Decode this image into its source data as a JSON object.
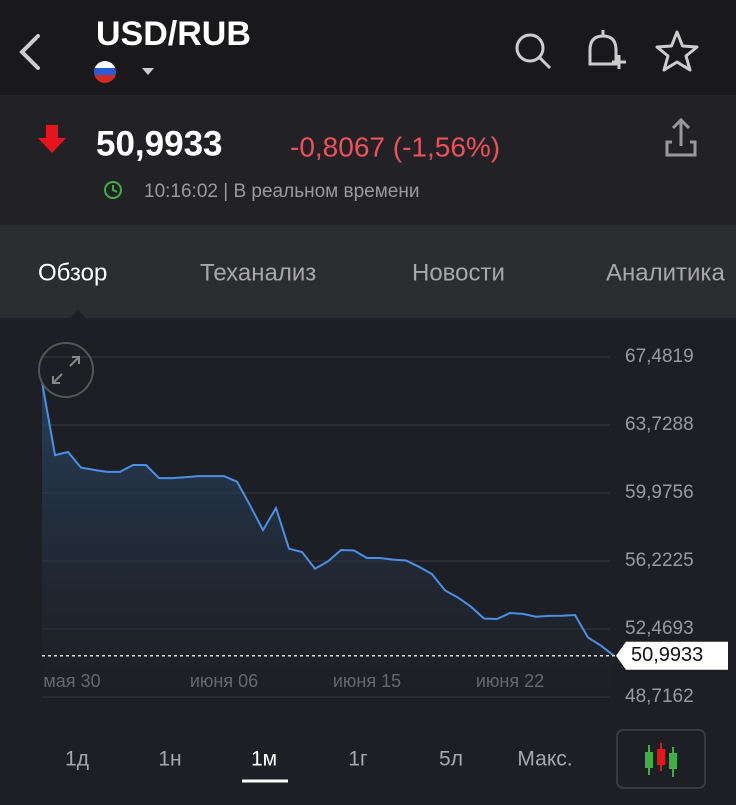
{
  "header": {
    "title": "USD/RUB"
  },
  "quote": {
    "price": "50,9933",
    "change": "-0,8067 (-1,56%)",
    "time": "10:16:02 | В реальном времени"
  },
  "tabs": [
    "Обзор",
    "Теханализ",
    "Новости",
    "Аналитика"
  ],
  "chart_data": {
    "type": "line",
    "categories": [
      null,
      null,
      "мая 30",
      null,
      null,
      null,
      null,
      null,
      null,
      null,
      null,
      null,
      null,
      null,
      "июня 06",
      null,
      null,
      null,
      null,
      null,
      null,
      null,
      null,
      null,
      null,
      "июня 15",
      null,
      null,
      null,
      null,
      null,
      null,
      null,
      null,
      null,
      null,
      "июня 22",
      null,
      null,
      null,
      null,
      null,
      null,
      null,
      null
    ],
    "series": [
      {
        "color": "#4a8fe8",
        "values": [
          66.1,
          62.07,
          62.24,
          61.38,
          61.25,
          61.14,
          61.14,
          61.52,
          61.52,
          60.8,
          60.8,
          60.85,
          60.91,
          60.91,
          60.91,
          60.6,
          59.3,
          57.93,
          59.15,
          56.9,
          56.72,
          55.8,
          56.2,
          56.83,
          56.8,
          56.39,
          56.39,
          56.3,
          56.25,
          55.9,
          55.5,
          54.6,
          54.2,
          53.7,
          53.05,
          53.02,
          53.35,
          53.3,
          53.15,
          53.19,
          53.2,
          53.24,
          52.0,
          51.55,
          50.9933
        ]
      }
    ],
    "ylim": [
      48.7162,
      67.4819
    ],
    "yticks": [
      {
        "value": 48.7162,
        "label": "48,7162"
      },
      {
        "value": 52.4693,
        "label": "52,4693"
      },
      {
        "value": 56.2225,
        "label": "56,2225"
      },
      {
        "value": 59.9756,
        "label": "59,9756"
      },
      {
        "value": 63.7288,
        "label": "63,7288"
      },
      {
        "value": 67.4819,
        "label": "67,4819"
      }
    ],
    "grid": true,
    "current": {
      "value": 50.9933,
      "label": "50,9933"
    }
  },
  "ranges": [
    "1д",
    "1н",
    "1м",
    "1г",
    "5л",
    "Макс."
  ]
}
